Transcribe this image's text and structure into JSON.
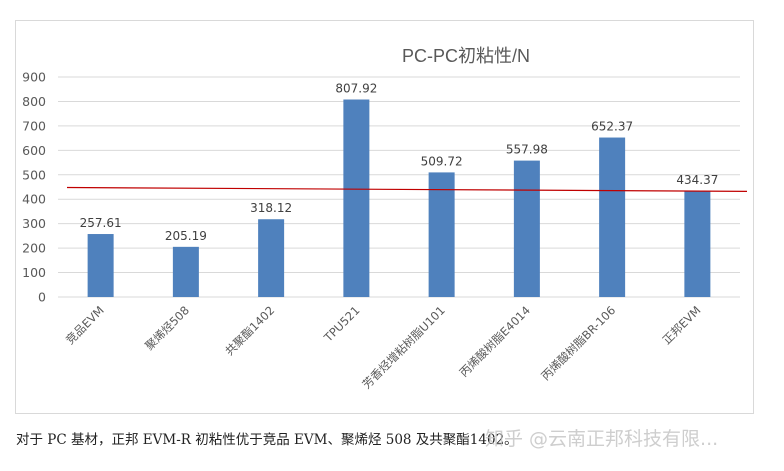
{
  "chart_data": {
    "type": "bar",
    "title": "PC-PC初粘性/N",
    "xlabel": "",
    "ylabel": "",
    "ylim": [
      0,
      900
    ],
    "yticks": [
      0,
      100,
      200,
      300,
      400,
      500,
      600,
      700,
      800,
      900
    ],
    "grid": true,
    "legend": null,
    "categories": [
      "竞品EVM",
      "聚烯烃508",
      "共聚酯1402",
      "TPU521",
      "芳香烃增粘树脂U101",
      "丙烯酸树脂E4014",
      "丙烯酸树脂BR-106",
      "正邦EVM"
    ],
    "values": [
      257.61,
      205.19,
      318.12,
      807.92,
      509.72,
      557.98,
      652.37,
      434.37
    ],
    "data_labels": [
      "257.61",
      "205.19",
      "318.12",
      "807.92",
      "509.72",
      "557.98",
      "652.37",
      "434.37"
    ],
    "bar_color": "#4f81bd",
    "reference_line": {
      "color": "#c00000",
      "y_start": 450,
      "y_end": 432,
      "description": "slightly sloped red trend/reference line"
    }
  },
  "caption": "对于 PC 基材，正邦 EVM-R 初粘性优于竞品 EVM、聚烯烃 508 及共聚酯1402。",
  "watermark": "知乎 @云南正邦科技有限..."
}
